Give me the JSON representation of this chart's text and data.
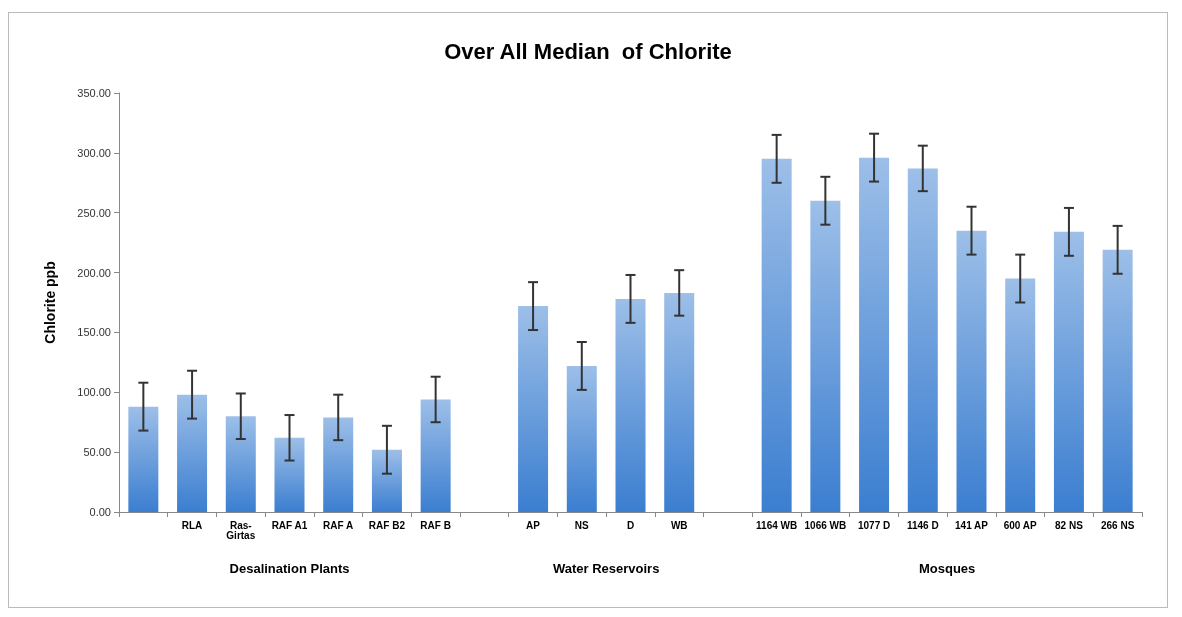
{
  "chart_data": {
    "type": "bar",
    "title": "Over All Median  of Chlorite",
    "ylabel": "Chlorite ppb",
    "categories": [
      null,
      "RLA",
      "Ras-Girtas",
      "RAF A1",
      "RAF A",
      "RAF B2",
      "RAF B",
      null,
      "AP",
      "NS",
      "D",
      "WB",
      null,
      "1164 WB",
      "1066 WB",
      "1077 D",
      "1146 D",
      "141 AP",
      "600 AP",
      "82 NS",
      "266 NS"
    ],
    "values": [
      88,
      98,
      80,
      62,
      79,
      52,
      94,
      null,
      172,
      122,
      178,
      183,
      null,
      295,
      260,
      296,
      287,
      235,
      195,
      234,
      219
    ],
    "errors": [
      20,
      20,
      19,
      19,
      19,
      20,
      19,
      null,
      20,
      20,
      20,
      19,
      null,
      20,
      20,
      20,
      19,
      20,
      20,
      20,
      20
    ],
    "color": "#3b7ed0",
    "ylim": [
      0,
      350
    ],
    "yticks": [
      {
        "value": 0,
        "label": "0.00"
      },
      {
        "value": 50,
        "label": "50.00"
      },
      {
        "value": 100,
        "label": "100.00"
      },
      {
        "value": 150,
        "label": "150.00"
      },
      {
        "value": 200,
        "label": "200.00"
      },
      {
        "value": 250,
        "label": "250.00"
      },
      {
        "value": 300,
        "label": "300.00"
      },
      {
        "value": 350,
        "label": "350.00"
      }
    ],
    "grid": false,
    "annotations": [
      "Desalination Plants",
      "Water Reservoirs",
      "Mosques"
    ]
  }
}
